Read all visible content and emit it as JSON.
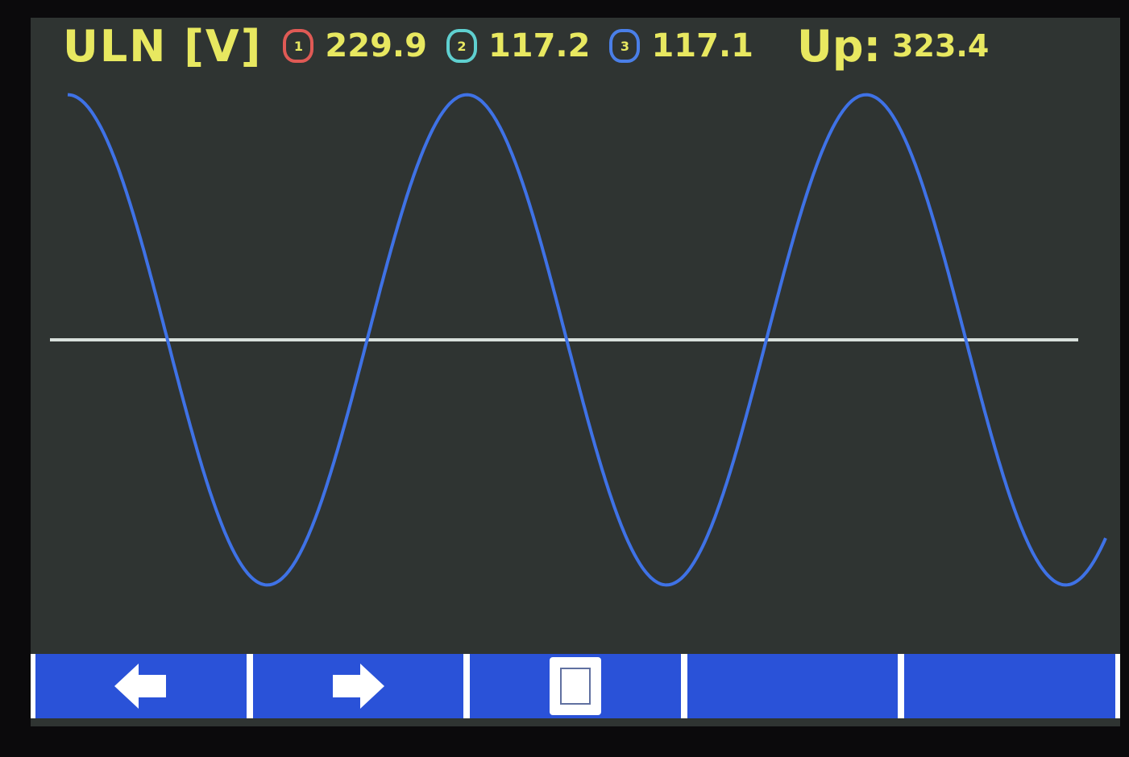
{
  "header": {
    "title": "ULN [V]",
    "phases": [
      {
        "label": "1",
        "value": "229.9",
        "color": "#e05a55"
      },
      {
        "label": "2",
        "value": "117.2",
        "color": "#5fd0d0"
      },
      {
        "label": "3",
        "value": "117.1",
        "color": "#4a7fe8"
      }
    ],
    "up_label": "Up:",
    "up_value": "323.4"
  },
  "chart_data": {
    "type": "line",
    "title": "",
    "xlabel": "",
    "ylabel": "",
    "grid": false,
    "zero_line": true,
    "series": [
      {
        "shape": "sine",
        "peak": 323.4,
        "cycles_shown": 2.6,
        "start_phase_deg": 90,
        "color": "#3f72e6"
      }
    ],
    "ylim": [
      -340,
      340
    ]
  },
  "toolbar": {
    "buttons": [
      {
        "icon": "arrow-left-icon"
      },
      {
        "icon": "arrow-right-icon"
      },
      {
        "icon": "window-icon"
      },
      {
        "icon": ""
      },
      {
        "icon": ""
      }
    ],
    "color": "#2a52d8"
  }
}
